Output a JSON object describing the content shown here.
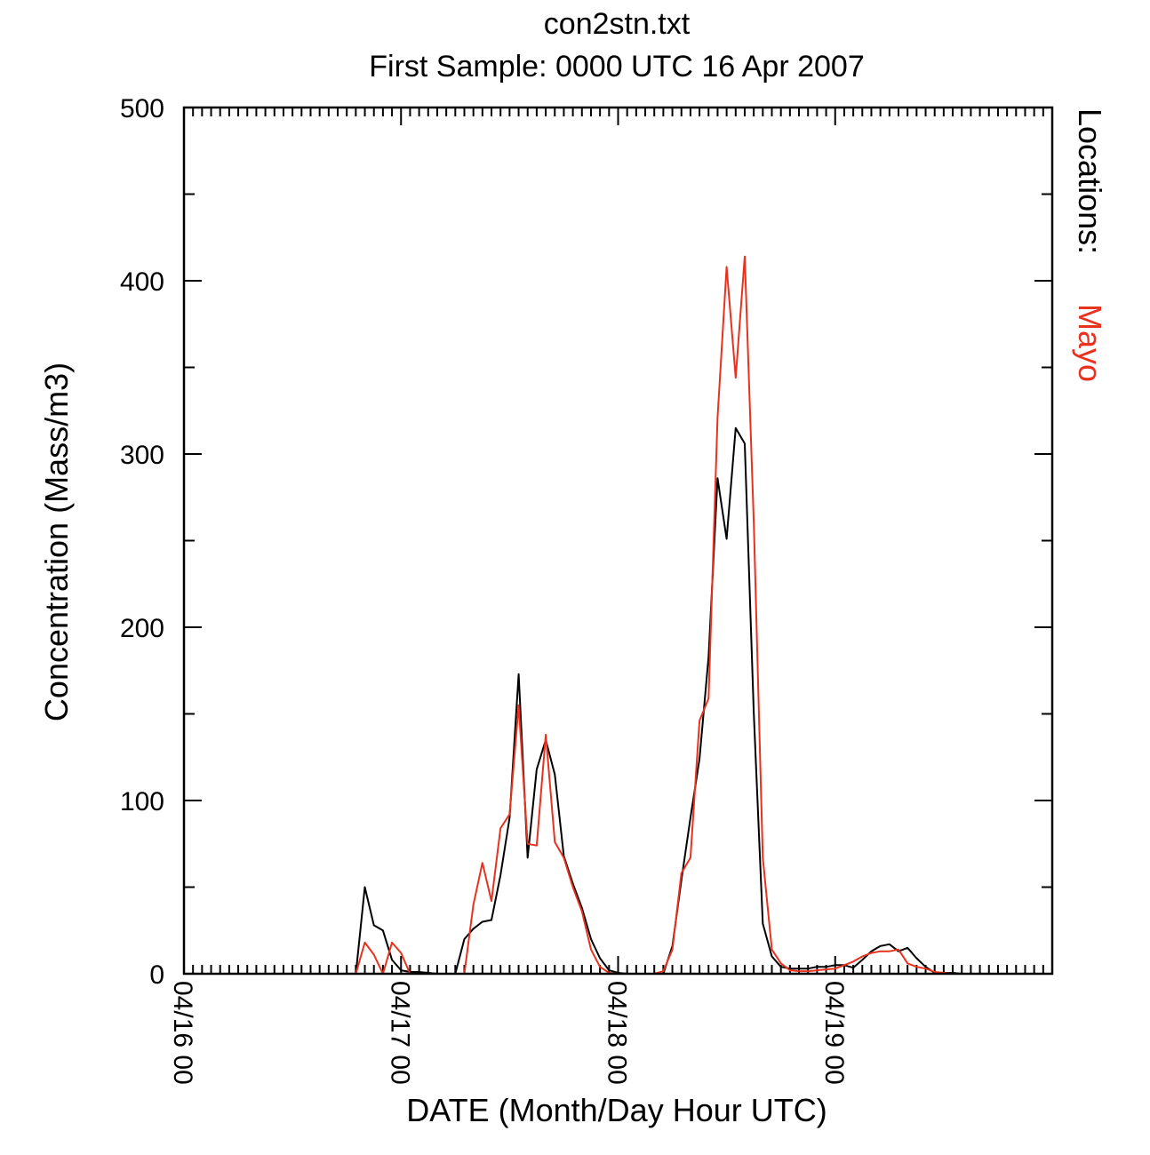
{
  "chart_data": {
    "type": "line",
    "title": "con2stn.txt",
    "subtitle": "First Sample: 0000 UTC 16 Apr 2007",
    "xlabel": "DATE (Month/Day Hour UTC)",
    "ylabel": "Concentration (Mass/m3)",
    "x_unit": "hours since 0000 UTC 16 Apr 2007",
    "xlim": [
      0,
      96
    ],
    "ylim": [
      0,
      500
    ],
    "x_ticks": [
      {
        "value": 0,
        "label": "04/16 00"
      },
      {
        "value": 24,
        "label": "04/17 00"
      },
      {
        "value": 48,
        "label": "04/18 00"
      },
      {
        "value": 72,
        "label": "04/19 00"
      }
    ],
    "y_ticks": [
      {
        "value": 0,
        "label": "0"
      },
      {
        "value": 100,
        "label": "100"
      },
      {
        "value": 200,
        "label": "200"
      },
      {
        "value": 300,
        "label": "300"
      },
      {
        "value": 400,
        "label": "400"
      },
      {
        "value": 500,
        "label": "500"
      }
    ],
    "x_minor_tick_step": 1,
    "y_minor_tick_step": 50,
    "grid": false,
    "legend": {
      "title": "Locations:",
      "placement": "right",
      "entries": [
        {
          "name": "Mayo",
          "color": "#e8321e"
        }
      ]
    },
    "series": [
      {
        "name": "Mayo",
        "color": "#e8321e",
        "x": [
          0,
          1,
          2,
          3,
          4,
          5,
          6,
          7,
          8,
          9,
          10,
          11,
          12,
          13,
          14,
          15,
          16,
          17,
          18,
          19,
          20,
          21,
          22,
          23,
          24,
          25,
          26,
          27,
          28,
          29,
          30,
          31,
          32,
          33,
          34,
          35,
          36,
          37,
          38,
          39,
          40,
          41,
          42,
          43,
          44,
          45,
          46,
          47,
          48,
          49,
          50,
          51,
          52,
          53,
          54,
          55,
          56,
          57,
          58,
          59,
          60,
          61,
          62,
          63,
          64,
          65,
          66,
          67,
          68,
          69,
          70,
          71,
          72,
          73,
          74,
          75,
          76,
          77,
          78,
          79,
          80,
          81,
          82,
          83,
          84,
          85,
          86,
          87,
          88,
          89,
          90,
          91,
          92,
          93,
          94,
          95,
          96
        ],
        "values": [
          0,
          0,
          0,
          0,
          0,
          0,
          0,
          0,
          0,
          0,
          0,
          0,
          0,
          0,
          0,
          0,
          0,
          0,
          0,
          0,
          18,
          11,
          0,
          18,
          12,
          0,
          0,
          0,
          0,
          0,
          0,
          0,
          40,
          64,
          42,
          84,
          92,
          155,
          75,
          74,
          138,
          76,
          67,
          50,
          36,
          14,
          4,
          0.5,
          0,
          0,
          0,
          0,
          0,
          1.5,
          14,
          58,
          67,
          146,
          159,
          321,
          408,
          344,
          414,
          260,
          67,
          14,
          6,
          2,
          1.5,
          1.5,
          2,
          2.5,
          3,
          5,
          7,
          10,
          12,
          13,
          13,
          14,
          6,
          4,
          3,
          1,
          0.5,
          0,
          0,
          0,
          0,
          0,
          0,
          0,
          0,
          0,
          0,
          0,
          0
        ]
      },
      {
        "name": "",
        "color": "#000000",
        "x": [
          0,
          1,
          2,
          3,
          4,
          5,
          6,
          7,
          8,
          9,
          10,
          11,
          12,
          13,
          14,
          15,
          16,
          17,
          18,
          19,
          20,
          21,
          22,
          23,
          24,
          25,
          26,
          27,
          28,
          29,
          30,
          31,
          32,
          33,
          34,
          35,
          36,
          37,
          38,
          39,
          40,
          41,
          42,
          43,
          44,
          45,
          46,
          47,
          48,
          49,
          50,
          51,
          52,
          53,
          54,
          55,
          56,
          57,
          58,
          59,
          60,
          61,
          62,
          63,
          64,
          65,
          66,
          67,
          68,
          69,
          70,
          71,
          72,
          73,
          74,
          75,
          76,
          77,
          78,
          79,
          80,
          81,
          82,
          83,
          84,
          85,
          86,
          87,
          88,
          89,
          90,
          91,
          92,
          93,
          94,
          95,
          96
        ],
        "values": [
          0,
          0,
          0,
          0,
          0,
          0,
          0,
          0,
          0,
          0,
          0,
          0,
          0,
          0,
          0,
          0,
          0,
          0,
          0,
          0,
          50,
          28,
          25,
          8,
          2,
          1,
          1,
          0.5,
          0,
          0,
          0,
          20,
          26,
          30,
          31,
          57,
          90,
          173,
          67,
          118,
          135,
          115,
          68,
          52,
          38,
          20,
          9,
          2,
          0.5,
          0,
          0,
          0,
          0,
          0,
          16,
          54,
          90,
          124,
          183,
          286,
          251,
          315,
          306,
          150,
          29,
          10,
          4,
          3,
          3,
          3,
          4,
          4,
          5,
          5,
          3.5,
          8,
          13,
          16,
          17,
          13,
          15,
          9,
          4,
          0.5,
          0.5,
          0.5,
          0,
          0,
          0,
          0,
          0,
          0,
          0,
          0,
          0,
          0,
          0
        ]
      }
    ]
  }
}
